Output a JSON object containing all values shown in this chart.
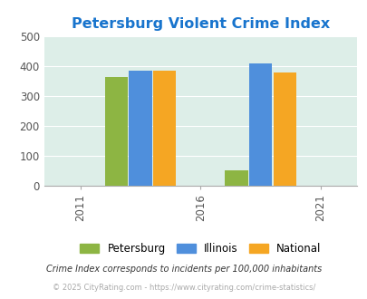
{
  "title": "Petersburg Violent Crime Index",
  "title_color": "#1874cd",
  "years": [
    2011,
    2016,
    2021
  ],
  "bar_groups": {
    "2011": {
      "Petersburg": 0,
      "Illinois": 0,
      "National": 0
    },
    "2016": {
      "Petersburg": 362,
      "Illinois": 383,
      "National": 383
    },
    "2021": {
      "Petersburg": 50,
      "Illinois": 408,
      "National": 379
    }
  },
  "group_centers": [
    2013.5,
    2018.5
  ],
  "group_years": [
    2016,
    2021
  ],
  "colors": {
    "Petersburg": "#8db543",
    "Illinois": "#4f8fdc",
    "National": "#f5a623"
  },
  "ylim": [
    0,
    500
  ],
  "yticks": [
    0,
    100,
    200,
    300,
    400,
    500
  ],
  "plot_bg_color": "#ddeee8",
  "bar_width": 1.0,
  "legend_labels": [
    "Petersburg",
    "Illinois",
    "National"
  ],
  "footnote1": "Crime Index corresponds to incidents per 100,000 inhabitants",
  "footnote2": "© 2025 CityRating.com - https://www.cityrating.com/crime-statistics/",
  "footnote1_color": "#333333",
  "footnote2_color": "#aaaaaa",
  "xlim": [
    2009.5,
    2022.5
  ],
  "xticks": [
    2011,
    2016,
    2021
  ]
}
